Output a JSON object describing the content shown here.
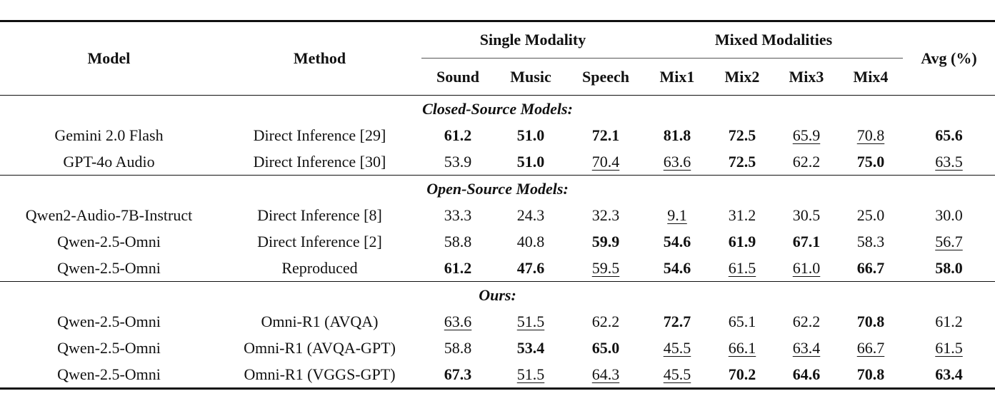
{
  "header": {
    "model": "Model",
    "method": "Method",
    "single_modality": "Single Modality",
    "mixed_modalities": "Mixed Modalities",
    "avg": "Avg (%)",
    "sound": "Sound",
    "music": "Music",
    "speech": "Speech",
    "mix1": "Mix1",
    "mix2": "Mix2",
    "mix3": "Mix3",
    "mix4": "Mix4"
  },
  "sections": {
    "closed": "Closed-Source Models:",
    "open": "Open-Source Models:",
    "ours": "Ours:"
  },
  "rows": {
    "r0": {
      "model": "Gemini 2.0 Flash",
      "method": "Direct Inference [29]",
      "sound": "61.2",
      "music": "51.0",
      "speech": "72.1",
      "mix1": "81.8",
      "mix2": "72.5",
      "mix3": "65.9",
      "mix4": "70.8",
      "avg": "65.6"
    },
    "r1": {
      "model": "GPT-4o Audio",
      "method": "Direct Inference [30]",
      "sound": "53.9",
      "music": "51.0",
      "speech": "70.4",
      "mix1": "63.6",
      "mix2": "72.5",
      "mix3": "62.2",
      "mix4": "75.0",
      "avg": "63.5"
    },
    "r2": {
      "model": "Qwen2-Audio-7B-Instruct",
      "method": "Direct Inference [8]",
      "sound": "33.3",
      "music": "24.3",
      "speech": "32.3",
      "mix1": "9.1",
      "mix2": "31.2",
      "mix3": "30.5",
      "mix4": "25.0",
      "avg": "30.0"
    },
    "r3": {
      "model": "Qwen-2.5-Omni",
      "method": "Direct Inference [2]",
      "sound": "58.8",
      "music": "40.8",
      "speech": "59.9",
      "mix1": "54.6",
      "mix2": "61.9",
      "mix3": "67.1",
      "mix4": "58.3",
      "avg": "56.7"
    },
    "r4": {
      "model": "Qwen-2.5-Omni",
      "method": "Reproduced",
      "sound": "61.2",
      "music": "47.6",
      "speech": "59.5",
      "mix1": "54.6",
      "mix2": "61.5",
      "mix3": "61.0",
      "mix4": "66.7",
      "avg": "58.0"
    },
    "r5": {
      "model": "Qwen-2.5-Omni",
      "method": "Omni-R1 (AVQA)",
      "sound": "63.6",
      "music": "51.5",
      "speech": "62.2",
      "mix1": "72.7",
      "mix2": "65.1",
      "mix3": "62.2",
      "mix4": "70.8",
      "avg": "61.2"
    },
    "r6": {
      "model": "Qwen-2.5-Omni",
      "method": "Omni-R1 (AVQA-GPT)",
      "sound": "58.8",
      "music": "53.4",
      "speech": "65.0",
      "mix1": "45.5",
      "mix2": "66.1",
      "mix3": "63.4",
      "mix4": "66.7",
      "avg": "61.5"
    },
    "r7": {
      "model": "Qwen-2.5-Omni",
      "method": "Omni-R1 (VGGS-GPT)",
      "sound": "67.3",
      "music": "51.5",
      "speech": "64.3",
      "mix1": "45.5",
      "mix2": "70.2",
      "mix3": "64.6",
      "mix4": "70.8",
      "avg": "63.4"
    }
  }
}
